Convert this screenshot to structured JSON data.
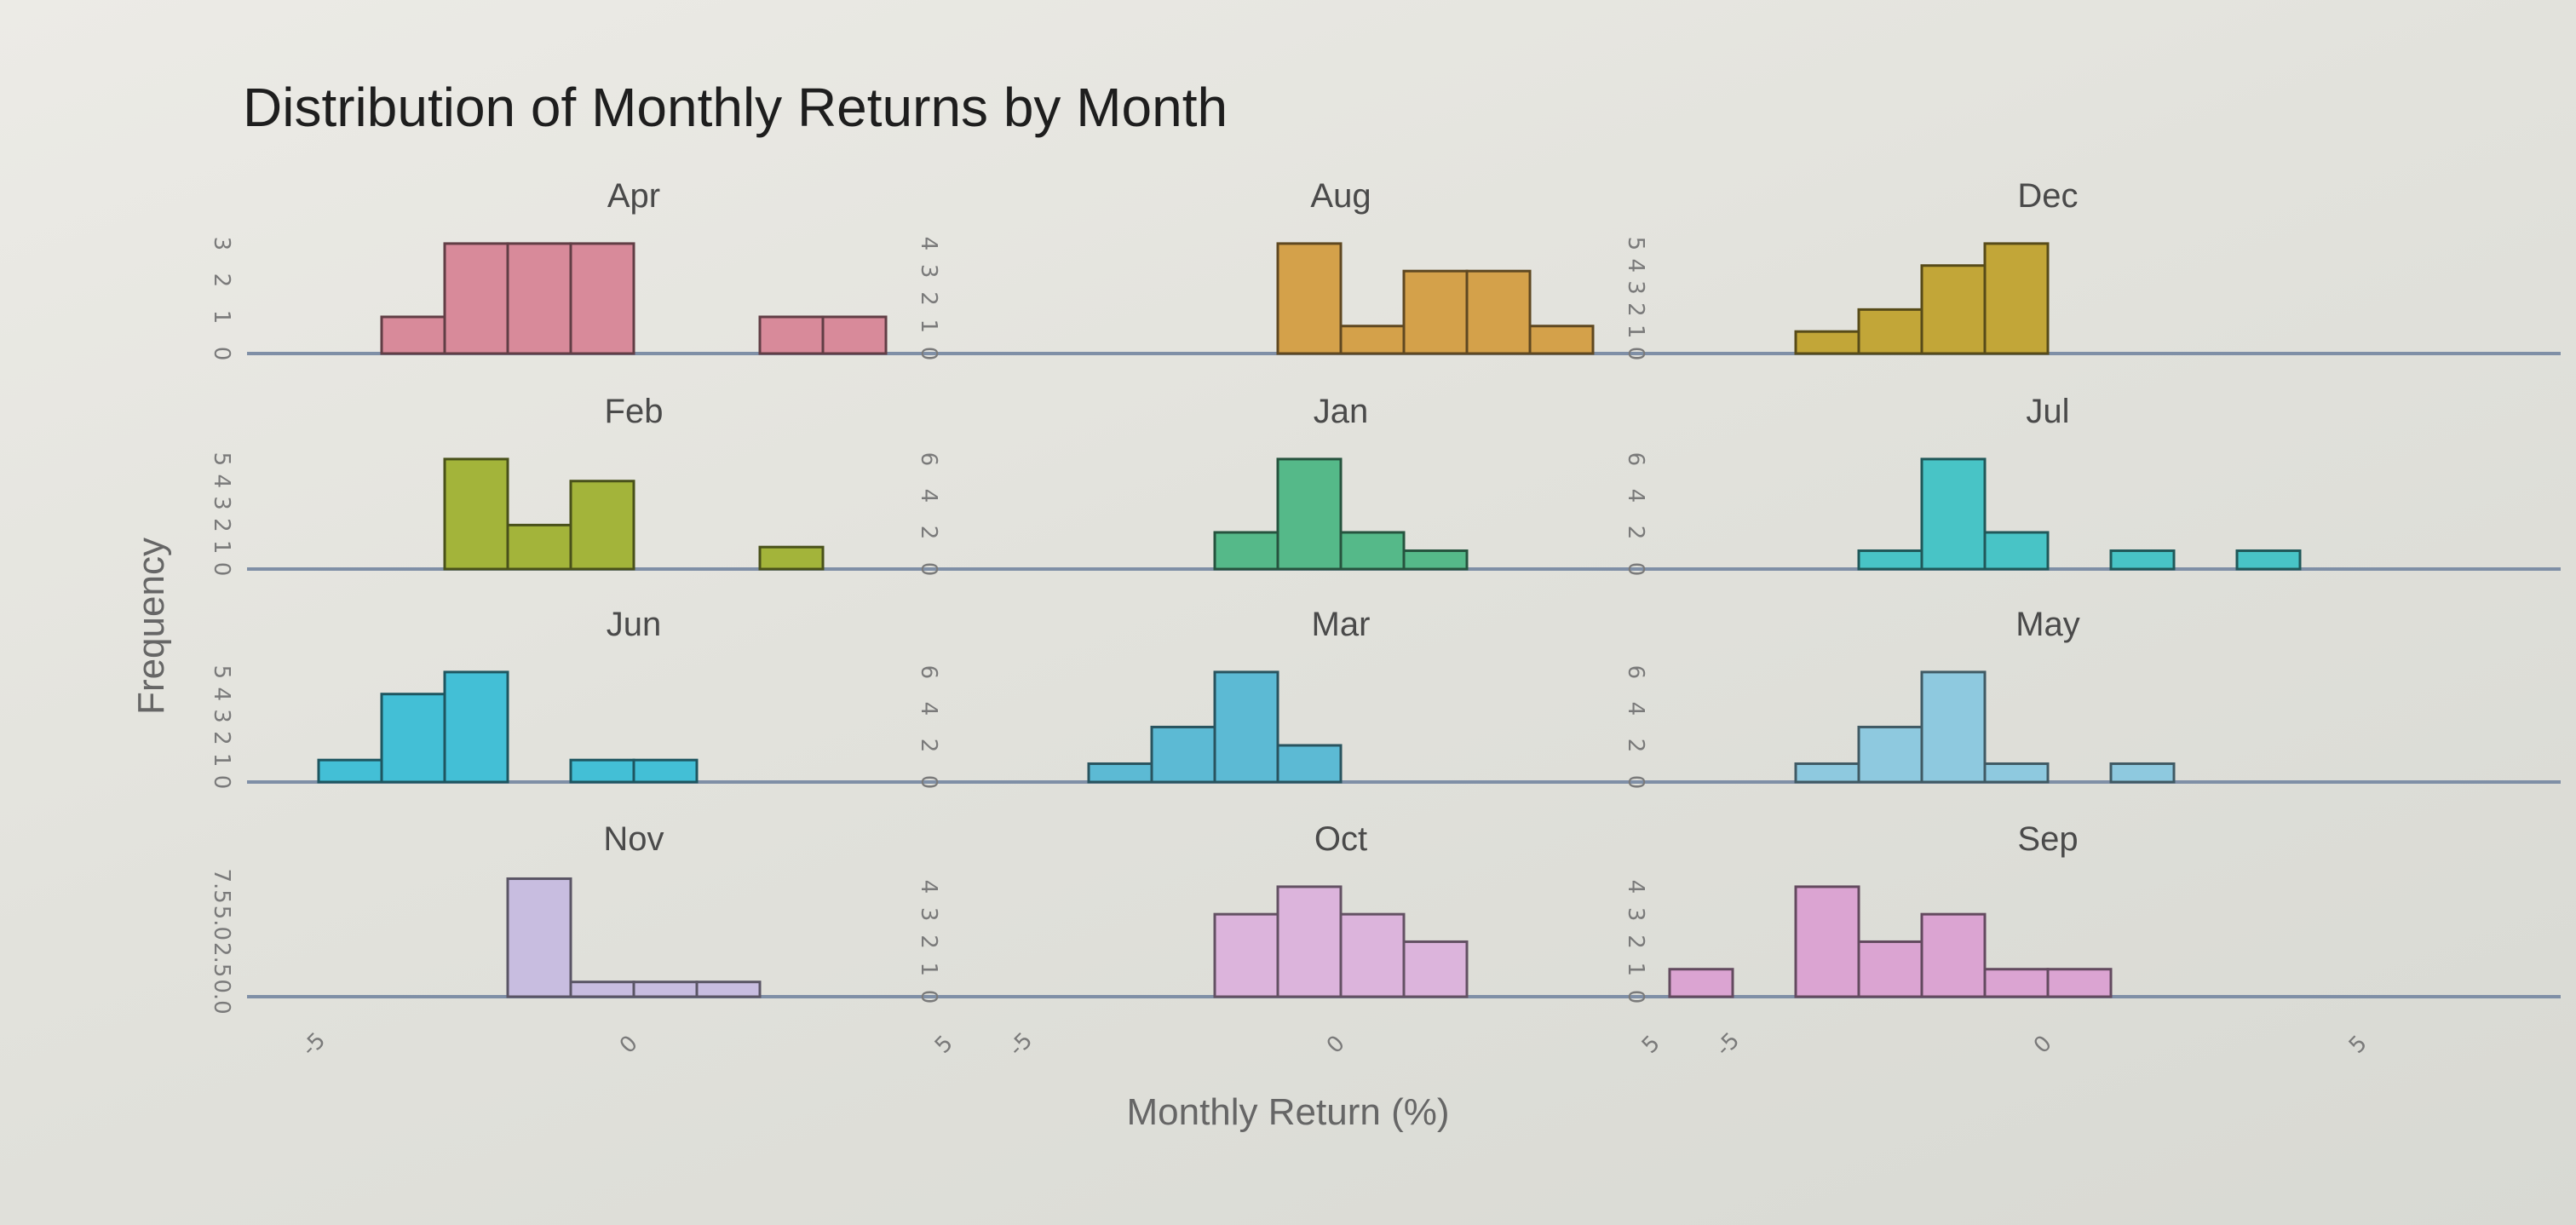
{
  "chart_data": {
    "type": "bar",
    "chart_kind": "faceted-histogram",
    "title": "Distribution of Monthly Returns by Month",
    "xlabel": "Monthly Return (%)",
    "ylabel": "Frequency",
    "grid": false,
    "x_ticks": [
      "-5",
      "0",
      "5"
    ],
    "bin_edges": [
      -6,
      -5,
      -4,
      -3,
      -2,
      -1,
      0,
      1,
      2,
      3,
      4,
      5,
      6,
      7,
      8
    ],
    "facets": [
      {
        "name": "Apr",
        "color": "#d88a9a",
        "y_ticks": [
          "0",
          "1",
          "2",
          "3"
        ],
        "ymax": 3.3,
        "counts": [
          0,
          0,
          1,
          3,
          3,
          3,
          0,
          0,
          1,
          1,
          0,
          0,
          0,
          0
        ]
      },
      {
        "name": "Aug",
        "color": "#d4a14a",
        "y_ticks": [
          "0",
          "1",
          "2",
          "3",
          "4"
        ],
        "ymax": 4.4,
        "counts": [
          0,
          0,
          0,
          0,
          0,
          4,
          1,
          3,
          3,
          1,
          0,
          0,
          0,
          0
        ]
      },
      {
        "name": "Dec",
        "color": "#c2a638",
        "y_ticks": [
          "0",
          "1",
          "2",
          "3",
          "4",
          "5"
        ],
        "ymax": 5.5,
        "counts": [
          0,
          0,
          1,
          2,
          4,
          5,
          0,
          0,
          0,
          0,
          0,
          0,
          0,
          0
        ]
      },
      {
        "name": "Feb",
        "color": "#a3b43a",
        "y_ticks": [
          "0",
          "1",
          "2",
          "3",
          "4",
          "5"
        ],
        "ymax": 5.5,
        "counts": [
          0,
          0,
          0,
          5,
          2,
          4,
          0,
          0,
          1,
          0,
          0,
          0,
          0,
          0
        ]
      },
      {
        "name": "Jan",
        "color": "#55b989",
        "y_ticks": [
          "0",
          "2",
          "4",
          "6"
        ],
        "ymax": 6.6,
        "counts": [
          0,
          0,
          0,
          0,
          2,
          6,
          2,
          1,
          0,
          0,
          0,
          0,
          0,
          0
        ]
      },
      {
        "name": "Jul",
        "color": "#48c4c6",
        "y_ticks": [
          "0",
          "2",
          "4",
          "6"
        ],
        "ymax": 6.6,
        "counts": [
          0,
          0,
          0,
          1,
          6,
          2,
          0,
          1,
          0,
          1,
          0,
          0,
          0,
          0
        ]
      },
      {
        "name": "Jun",
        "color": "#43bfd6",
        "y_ticks": [
          "0",
          "1",
          "2",
          "3",
          "4",
          "5"
        ],
        "ymax": 5.5,
        "counts": [
          0,
          1,
          4,
          5,
          0,
          1,
          1,
          0,
          0,
          0,
          0,
          0,
          0,
          0
        ]
      },
      {
        "name": "Mar",
        "color": "#5cbad4",
        "y_ticks": [
          "0",
          "2",
          "4",
          "6"
        ],
        "ymax": 6.6,
        "counts": [
          0,
          0,
          1,
          3,
          6,
          2,
          0,
          0,
          0,
          0,
          0,
          0,
          0,
          0
        ]
      },
      {
        "name": "May",
        "color": "#8ec9df",
        "y_ticks": [
          "0",
          "2",
          "4",
          "6"
        ],
        "ymax": 6.6,
        "counts": [
          0,
          0,
          1,
          3,
          6,
          1,
          0,
          1,
          0,
          0,
          0,
          0,
          0,
          0
        ]
      },
      {
        "name": "Nov",
        "color": "#c8bde0",
        "y_ticks": [
          "0.0",
          "2.5",
          "5.0",
          "7.5"
        ],
        "ymax": 8.2,
        "counts": [
          0,
          0,
          0,
          0,
          8,
          1,
          1,
          1,
          0,
          0,
          0,
          0,
          0,
          0
        ]
      },
      {
        "name": "Oct",
        "color": "#dcb4dc",
        "y_ticks": [
          "0",
          "1",
          "2",
          "3",
          "4"
        ],
        "ymax": 4.4,
        "counts": [
          0,
          0,
          0,
          0,
          3,
          4,
          3,
          2,
          0,
          0,
          0,
          0,
          0,
          0
        ]
      },
      {
        "name": "Sep",
        "color": "#dba4d2",
        "y_ticks": [
          "0",
          "1",
          "2",
          "3",
          "4"
        ],
        "ymax": 4.4,
        "counts": [
          1,
          0,
          4,
          2,
          3,
          1,
          1,
          0,
          0,
          0,
          0,
          0,
          0,
          0
        ]
      }
    ]
  }
}
